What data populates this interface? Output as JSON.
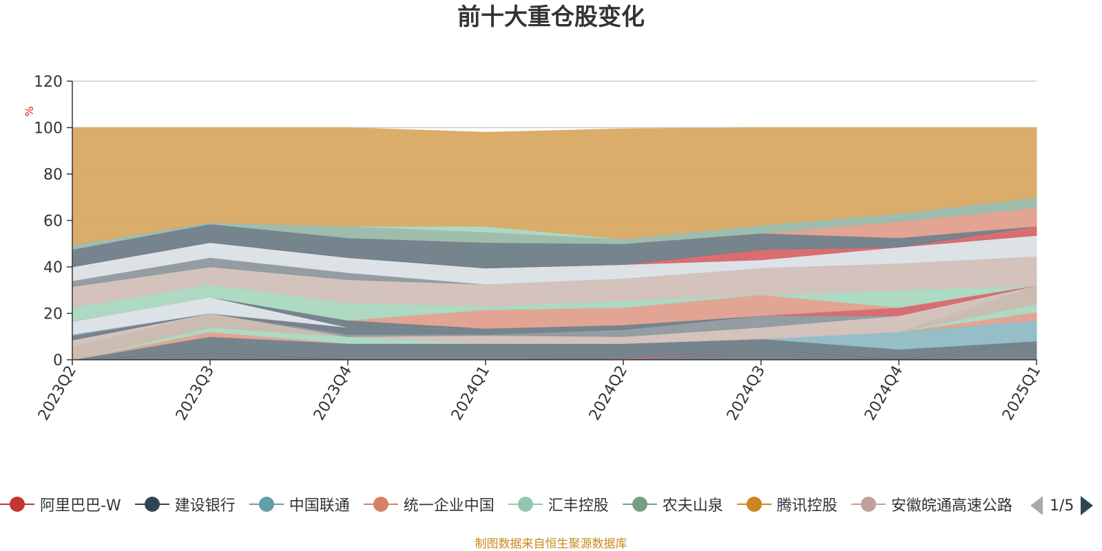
{
  "title": "前十大重仓股变化",
  "source_note": "制图数据来自恒生聚源数据库",
  "pagination": {
    "indicator": "1/5"
  },
  "chart_data": {
    "type": "area",
    "title": "前十大重仓股变化",
    "ylabel": "%",
    "ylim": [
      0,
      120
    ],
    "yticks": [
      0,
      20,
      40,
      60,
      80,
      100,
      120
    ],
    "categories": [
      "2023Q2",
      "2023Q3",
      "2023Q4",
      "2024Q1",
      "2024Q2",
      "2024Q3",
      "2024Q4",
      "2025Q1"
    ],
    "grid": true,
    "legend_position": "bottom",
    "stacked_bands": [
      {
        "upper": [
          0,
          3,
          0,
          0,
          0,
          4.5,
          0,
          8
        ],
        "color": "#6f7d87"
      },
      {
        "upper": [
          0,
          3,
          0,
          0,
          0.5,
          4.5,
          0,
          8
        ],
        "color": "#d5666a"
      },
      {
        "upper": [
          0,
          10,
          7,
          7,
          7,
          9,
          4.5,
          8
        ],
        "color": "#6f7d87"
      },
      {
        "upper": [
          0,
          10,
          7,
          7,
          7,
          9,
          12,
          17
        ],
        "color": "#8fbac4"
      },
      {
        "upper": [
          0,
          12,
          7,
          7,
          7,
          9,
          12,
          20.5
        ],
        "color": "#e0a08e"
      },
      {
        "upper": [
          0,
          14,
          10,
          7,
          7,
          9,
          12,
          24
        ],
        "color": "#aad7c0"
      },
      {
        "upper": [
          5.5,
          20,
          10,
          7,
          7,
          9,
          12,
          32
        ],
        "color": "#c8b8ad"
      },
      {
        "upper": [
          5.5,
          20,
          10,
          8,
          10,
          14,
          12,
          32
        ],
        "color": "#d2bfb9"
      },
      {
        "upper": [
          8.5,
          20,
          10,
          10.5,
          10,
          14,
          19,
          32
        ],
        "color": "#d2bfb9"
      },
      {
        "upper": [
          8.5,
          20,
          10,
          10.5,
          13,
          19,
          19,
          32
        ],
        "color": "#8e989d"
      },
      {
        "upper": [
          8.5,
          20,
          11,
          11,
          13,
          19,
          19,
          32
        ],
        "color": "#8e989d"
      },
      {
        "upper": [
          10.5,
          20,
          14,
          13.5,
          15,
          19,
          19,
          32
        ],
        "color": "#6f7d87"
      },
      {
        "upper": [
          11,
          20,
          14,
          13.5,
          15,
          19,
          19,
          32
        ],
        "color": "#8fbac4"
      },
      {
        "upper": [
          11,
          20,
          14,
          13.5,
          15,
          19,
          22.5,
          32
        ],
        "color": "#d5666a"
      },
      {
        "upper": [
          16.5,
          27,
          14,
          13.5,
          15,
          19,
          22.5,
          32
        ],
        "color": "#dbe0e6"
      },
      {
        "upper": [
          16.5,
          27,
          17,
          13.5,
          15,
          19,
          22.5,
          32
        ],
        "color": "#6f7d87"
      },
      {
        "upper": [
          16.5,
          27,
          17,
          21.5,
          22.5,
          28,
          22.5,
          32
        ],
        "color": "#e0a08e"
      },
      {
        "upper": [
          22.5,
          32.5,
          24.5,
          23,
          22.5,
          28,
          22.5,
          32
        ],
        "color": "#aad7c0"
      },
      {
        "upper": [
          22.5,
          32.5,
          24.5,
          23,
          25.5,
          28,
          30,
          32
        ],
        "color": "#aad7c0"
      },
      {
        "upper": [
          31.5,
          40,
          34.5,
          32.5,
          35,
          39.5,
          41.5,
          44.5
        ],
        "color": "#d2bfb9"
      },
      {
        "upper": [
          34,
          44,
          37.5,
          32.5,
          35,
          39.5,
          41.5,
          44.5
        ],
        "color": "#8e989d"
      },
      {
        "upper": [
          40,
          50.5,
          44,
          39.5,
          41,
          43,
          48.5,
          53.5
        ],
        "color": "#dbe0e6"
      },
      {
        "upper": [
          40,
          50.5,
          44,
          39.5,
          41,
          47.5,
          48.5,
          57.5
        ],
        "color": "#d5666a"
      },
      {
        "upper": [
          47.5,
          58.5,
          52.5,
          50.5,
          50,
          54.5,
          52.5,
          57.5
        ],
        "color": "#6f7d87"
      },
      {
        "upper": [
          47.5,
          58.5,
          52.5,
          50.5,
          50,
          54.5,
          59.5,
          65.5
        ],
        "color": "#e0a08e"
      },
      {
        "upper": [
          49.5,
          58.5,
          57.5,
          55,
          52,
          58,
          63,
          70
        ],
        "color": "#9ab9a9"
      },
      {
        "upper": [
          49.5,
          58.5,
          57.5,
          57.5,
          52,
          58,
          63,
          70
        ],
        "color": "#aad7c0"
      },
      {
        "upper": [
          49.5,
          59,
          57.5,
          57.5,
          52,
          58,
          63,
          70
        ],
        "color": "#8fbac4"
      },
      {
        "upper": [
          100,
          100,
          100,
          98,
          99.5,
          100,
          100,
          100
        ],
        "color": "#d9a962"
      }
    ],
    "series": [
      {
        "name": "阿里巴巴-W",
        "color": "#c23531"
      },
      {
        "name": "建设银行",
        "color": "#2f4554"
      },
      {
        "name": "中国联通",
        "color": "#61a0a8"
      },
      {
        "name": "统一企业中国",
        "color": "#d48265"
      },
      {
        "name": "汇丰控股",
        "color": "#91c7ae"
      },
      {
        "name": "农夫山泉",
        "color": "#749f83"
      },
      {
        "name": "腾讯控股",
        "color": "#ca8622"
      },
      {
        "name": "安徽皖通高速公路",
        "color": "#bda29a"
      }
    ]
  }
}
